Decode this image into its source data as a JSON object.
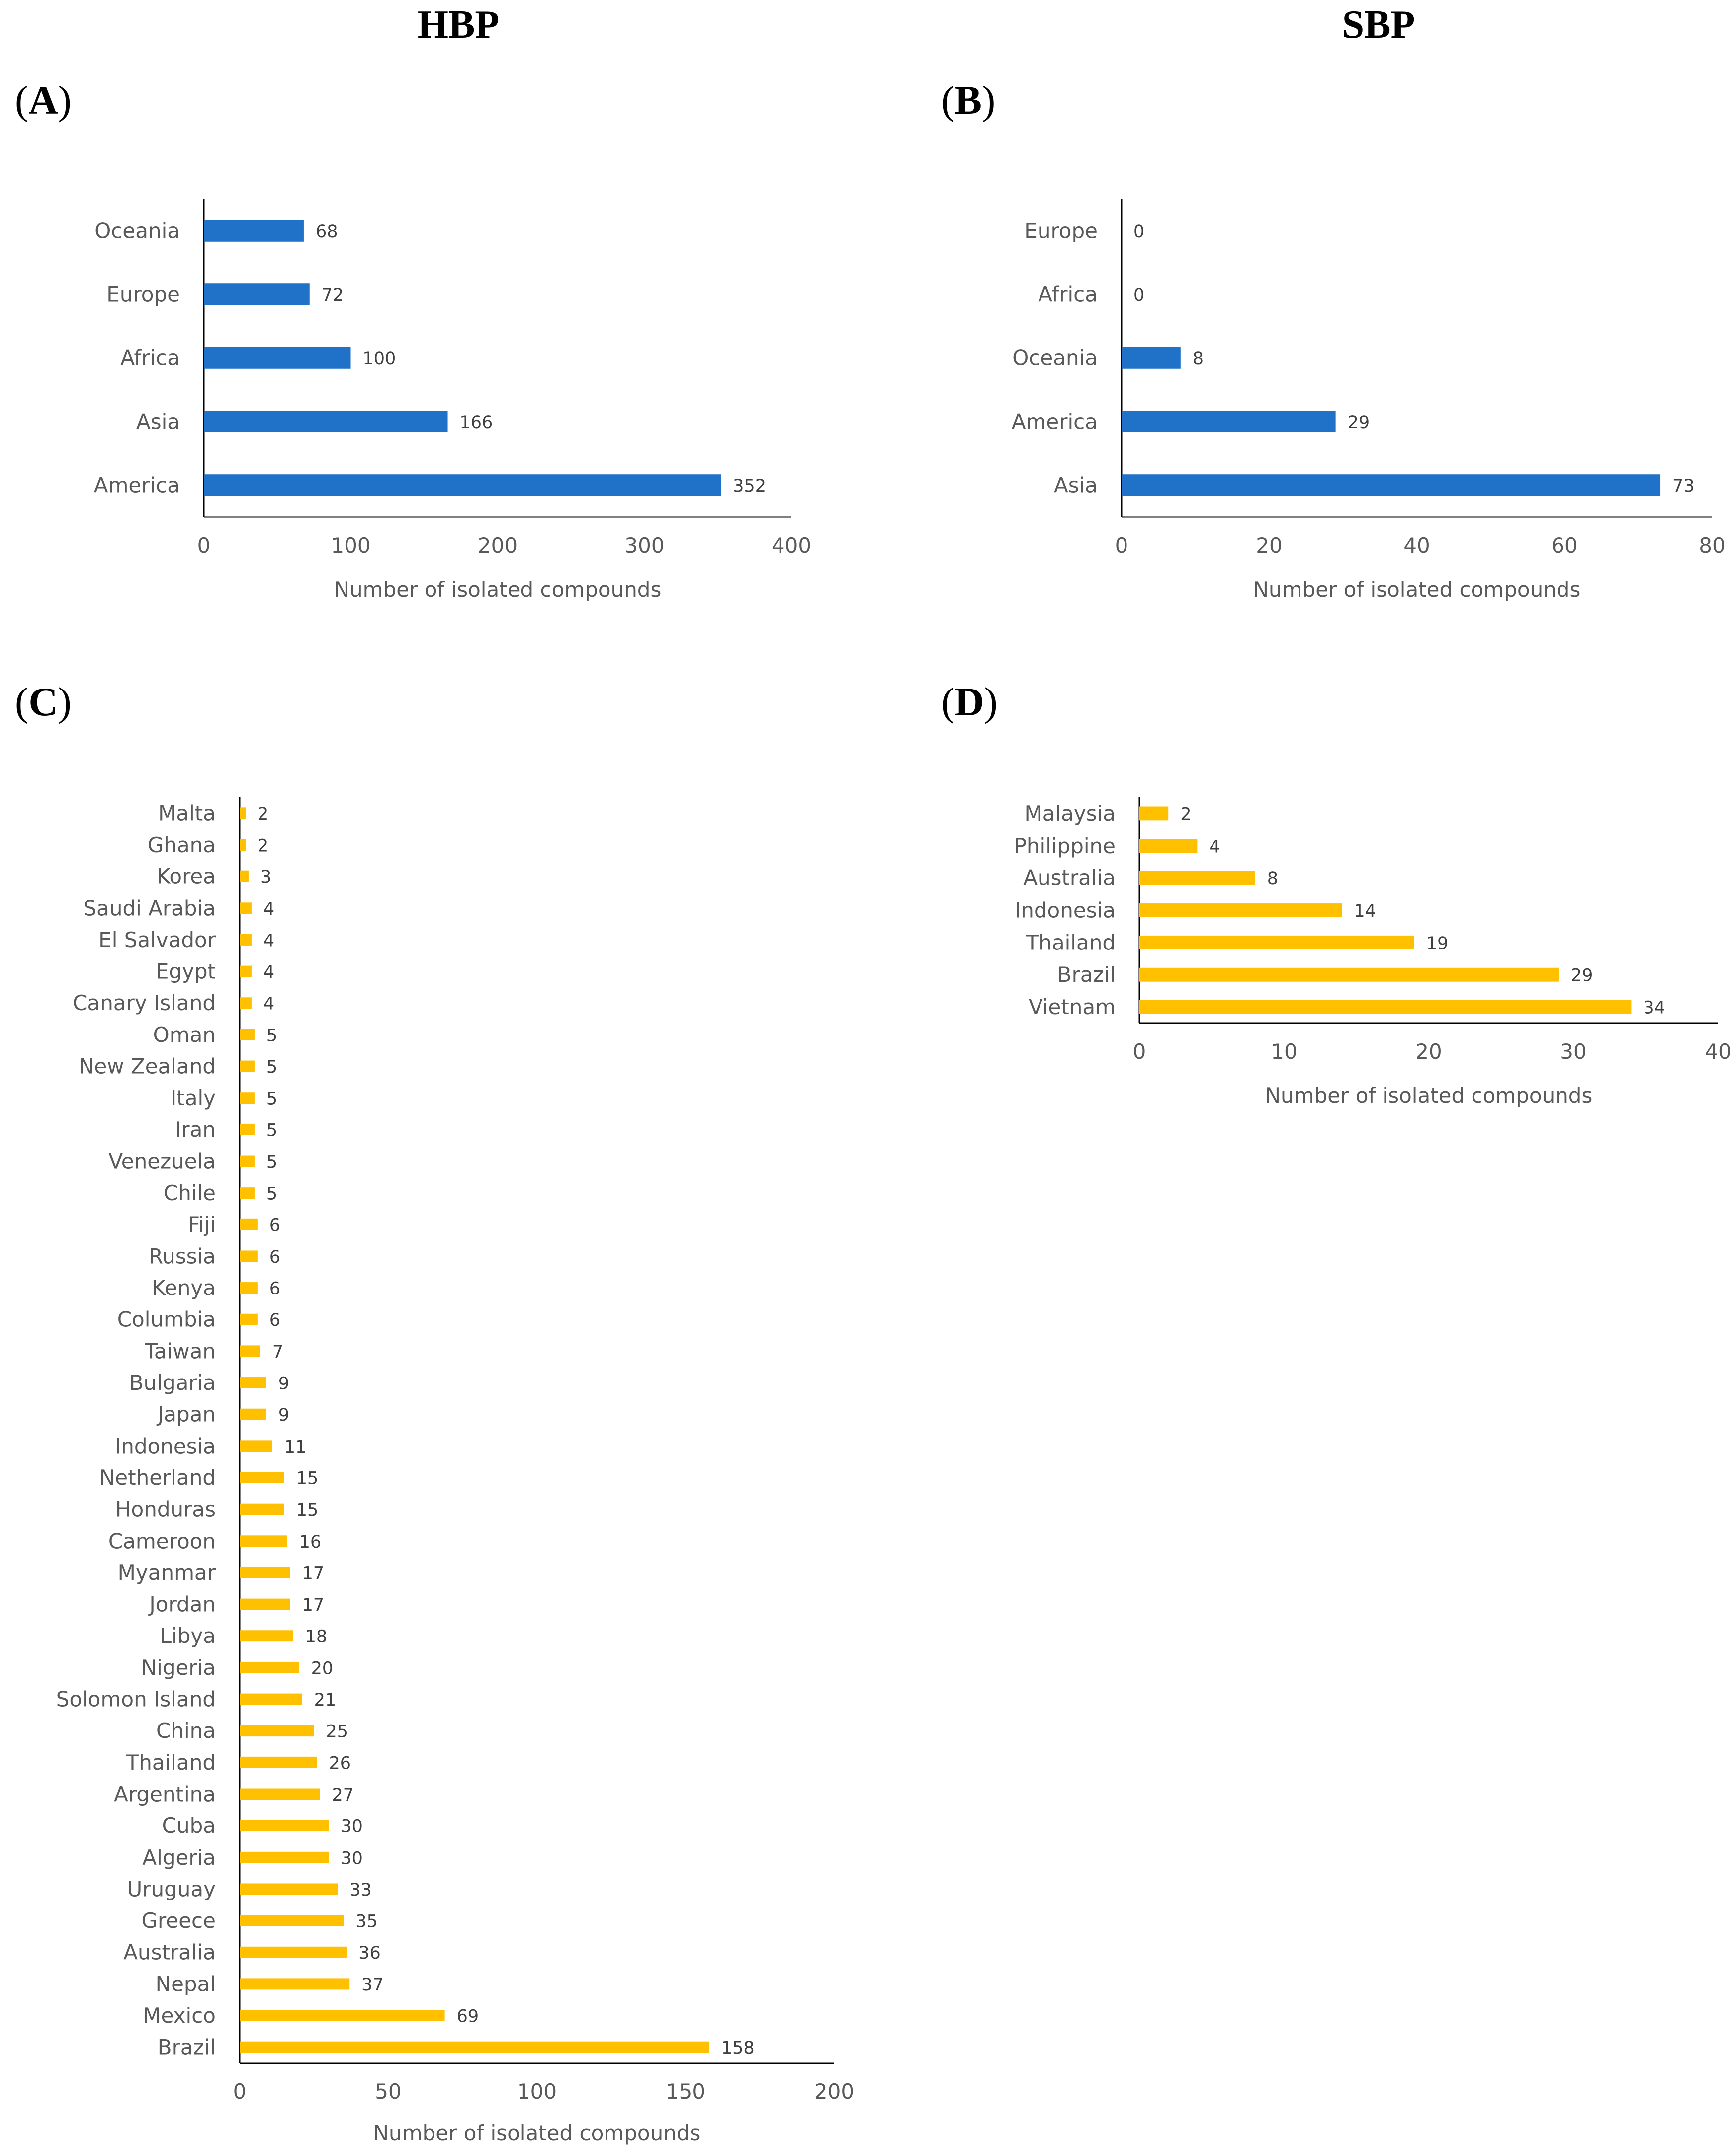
{
  "headers": {
    "left": "HBP",
    "right": "SBP"
  },
  "panels": {
    "a": {
      "open": "(",
      "letter": "A",
      "close": ")"
    },
    "b": {
      "open": "(",
      "letter": "B",
      "close": ")"
    },
    "c": {
      "open": "(",
      "letter": "C",
      "close": ")"
    },
    "d": {
      "open": "(",
      "letter": "D",
      "close": ")"
    }
  },
  "colors": {
    "blue": "#1F72C8",
    "yellow": "#FFC000"
  },
  "chart_data": [
    {
      "id": "A",
      "type": "bar",
      "orientation": "horizontal",
      "title": "",
      "categories": [
        "Oceania",
        "Europe",
        "Africa",
        "Asia",
        "America"
      ],
      "values": [
        68,
        72,
        100,
        166,
        352
      ],
      "xlabel": "Number of isolated compounds",
      "ylabel": "",
      "xlim": [
        0,
        400
      ],
      "xticks": [
        0,
        100,
        200,
        300,
        400
      ],
      "color": "#1F72C8",
      "data_labels": true
    },
    {
      "id": "B",
      "type": "bar",
      "orientation": "horizontal",
      "title": "",
      "categories": [
        "Europe",
        "Africa",
        "Oceania",
        "America",
        "Asia"
      ],
      "values": [
        0,
        0,
        8,
        29,
        73
      ],
      "xlabel": "Number of isolated compounds",
      "ylabel": "",
      "xlim": [
        0,
        80
      ],
      "xticks": [
        0,
        20,
        40,
        60,
        80
      ],
      "color": "#1F72C8",
      "data_labels": true
    },
    {
      "id": "C",
      "type": "bar",
      "orientation": "horizontal",
      "title": "",
      "categories": [
        "Malta",
        "Ghana",
        "Korea",
        "Saudi Arabia",
        "El Salvador",
        "Egypt",
        "Canary Island",
        "Oman",
        "New Zealand",
        "Italy",
        "Iran",
        "Venezuela",
        "Chile",
        "Fiji",
        "Russia",
        "Kenya",
        "Columbia",
        "Taiwan",
        "Bulgaria",
        "Japan",
        "Indonesia",
        "Netherland",
        "Honduras",
        "Cameroon",
        "Myanmar",
        "Jordan",
        "Libya",
        "Nigeria",
        "Solomon Island",
        "China",
        "Thailand",
        "Argentina",
        "Cuba",
        "Algeria",
        "Uruguay",
        "Greece",
        "Australia",
        "Nepal",
        "Mexico",
        "Brazil"
      ],
      "values": [
        2,
        2,
        3,
        4,
        4,
        4,
        4,
        5,
        5,
        5,
        5,
        5,
        5,
        6,
        6,
        6,
        6,
        7,
        9,
        9,
        11,
        15,
        15,
        16,
        17,
        17,
        18,
        20,
        21,
        25,
        26,
        27,
        30,
        30,
        33,
        35,
        36,
        37,
        69,
        158
      ],
      "xlabel": "Number of isolated compounds",
      "ylabel": "",
      "xlim": [
        0,
        200
      ],
      "xticks": [
        0,
        50,
        100,
        150,
        200
      ],
      "color": "#FFC000",
      "data_labels": true
    },
    {
      "id": "D",
      "type": "bar",
      "orientation": "horizontal",
      "title": "",
      "categories": [
        "Malaysia",
        "Philippine",
        "Australia",
        "Indonesia",
        "Thailand",
        "Brazil",
        "Vietnam"
      ],
      "values": [
        2,
        4,
        8,
        14,
        19,
        29,
        34
      ],
      "xlabel": "Number of isolated compounds",
      "ylabel": "",
      "xlim": [
        0,
        40
      ],
      "xticks": [
        0,
        10,
        20,
        30,
        40
      ],
      "color": "#FFC000",
      "data_labels": true
    }
  ]
}
